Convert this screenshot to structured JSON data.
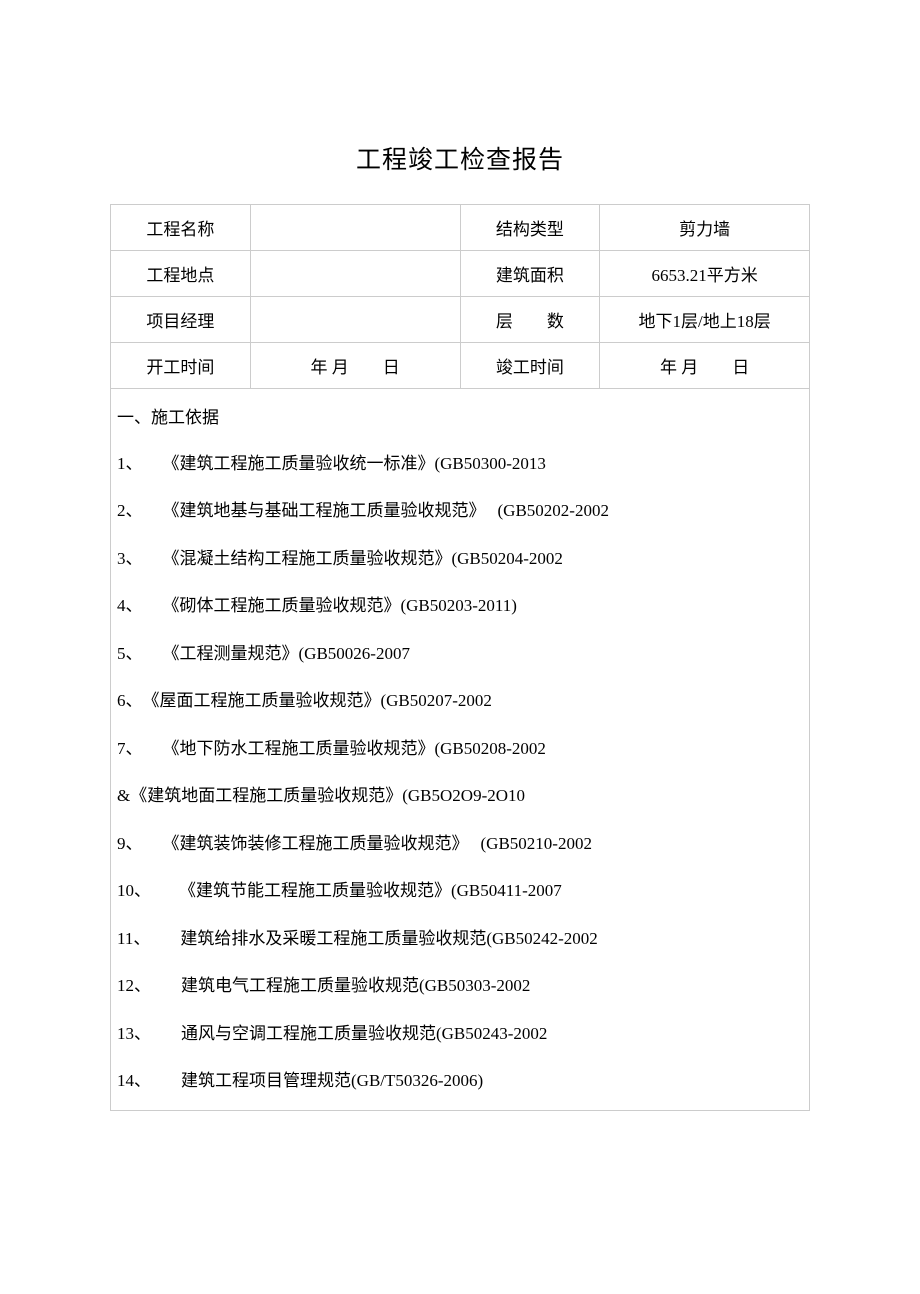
{
  "document": {
    "title": "工程竣工检查报告",
    "title_fontsize": 25,
    "body_fontsize": 17,
    "background_color": "#ffffff",
    "text_color": "#000000",
    "border_color": "#cccccc"
  },
  "info_table": {
    "rows": [
      {
        "label1": "工程名称",
        "value1": "",
        "label2": "结构类型",
        "value2": "剪力墙"
      },
      {
        "label1": "工程地点",
        "value1": "",
        "label2": "建筑面积",
        "value2": "6653.21平方米"
      },
      {
        "label1": "项目经理",
        "value1": "",
        "label2": "层　　数",
        "value2": "地下1层/地上18层"
      },
      {
        "label1": "开工时间",
        "value1": "年 月　　日",
        "label2": "竣工时间",
        "value2": "年 月　　日"
      }
    ]
  },
  "section": {
    "heading": "一、施工依据",
    "items": [
      {
        "num": "1、",
        "text": "《建筑工程施工质量验收统一标准》(GB50300-2013",
        "gap": "item-gap-1"
      },
      {
        "num": "2、",
        "text": "《建筑地基与基础工程施工质量验收规范》",
        "code": "(GB50202-2002",
        "gap": "item-gap-1",
        "extra_gap": true
      },
      {
        "num": "3、",
        "text": "《混凝土结构工程施工质量验收规范》(GB50204-2002",
        "gap": "item-gap-1"
      },
      {
        "num": "4、",
        "text": "《砌体工程施工质量验收规范》(GB50203-2011)",
        "gap": "item-gap-1"
      },
      {
        "num": "5、",
        "text": "《工程测量规范》(GB50026-2007",
        "gap": "item-gap-1"
      },
      {
        "num": "6、",
        "text": "《屋面工程施工质量验收规范》(GB50207-2002",
        "gap": "item-gap-none",
        "prefix_gap": false
      },
      {
        "num": "7、",
        "text": "《地下防水工程施工质量验收规范》(GB50208-2002",
        "gap": "item-gap-1"
      },
      {
        "num": "&",
        "text": "《建筑地面工程施工质量验收规范》(GB5O2O9-2O10",
        "gap": "item-gap-none"
      },
      {
        "num": "9、",
        "text": "《建筑装饰装修工程施工质量验收规范》",
        "code": "(GB50210-2002",
        "gap": "item-gap-1",
        "extra_gap": true
      },
      {
        "num": "10、",
        "text": "《建筑节能工程施工质量验收规范》(GB50411-2007",
        "gap": "item-gap-2"
      },
      {
        "num": "11、",
        "text": "建筑给排水及采暖工程施工质量验收规范(GB50242-2002",
        "gap": "item-gap-3"
      },
      {
        "num": "12、",
        "text": "建筑电气工程施工质量验收规范(GB50303-2002",
        "gap": "item-gap-3"
      },
      {
        "num": "13、",
        "text": "通风与空调工程施工质量验收规范(GB50243-2002",
        "gap": "item-gap-3"
      },
      {
        "num": "14、",
        "text": "建筑工程项目管理规范(GB/T50326-2006)",
        "gap": "item-gap-3"
      }
    ]
  }
}
